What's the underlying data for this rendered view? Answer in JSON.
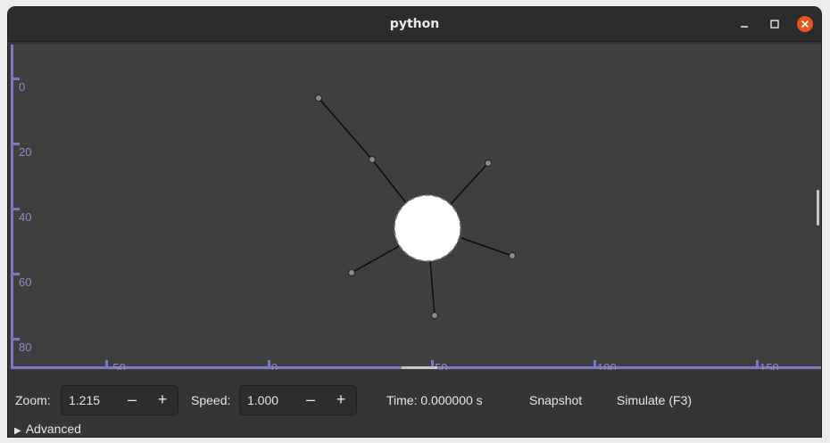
{
  "window": {
    "title": "python",
    "minimize_symbol": "–",
    "maximize_symbol": "□",
    "close_symbol": "×"
  },
  "colors": {
    "axis": "#7b78c6",
    "canvas_bg": "#3f3f3f",
    "body": "#ffffff",
    "node": "#8a8a8a",
    "close_button": "#e95420"
  },
  "canvas": {
    "y_ticks": [
      "0",
      "20",
      "40",
      "60",
      "80"
    ],
    "x_ticks": [
      "-50",
      "0",
      "50",
      "100",
      "150"
    ]
  },
  "controls": {
    "zoom_label": "Zoom:",
    "zoom_value": "1.215",
    "speed_label": "Speed:",
    "speed_value": "1.000",
    "minus": "–",
    "plus": "+",
    "time_text": "Time: 0.000000 s",
    "snapshot_label": "Snapshot",
    "simulate_label": "Simulate (F3)",
    "advanced_label": "Advanced",
    "advanced_icon": "triangle-right-icon"
  }
}
